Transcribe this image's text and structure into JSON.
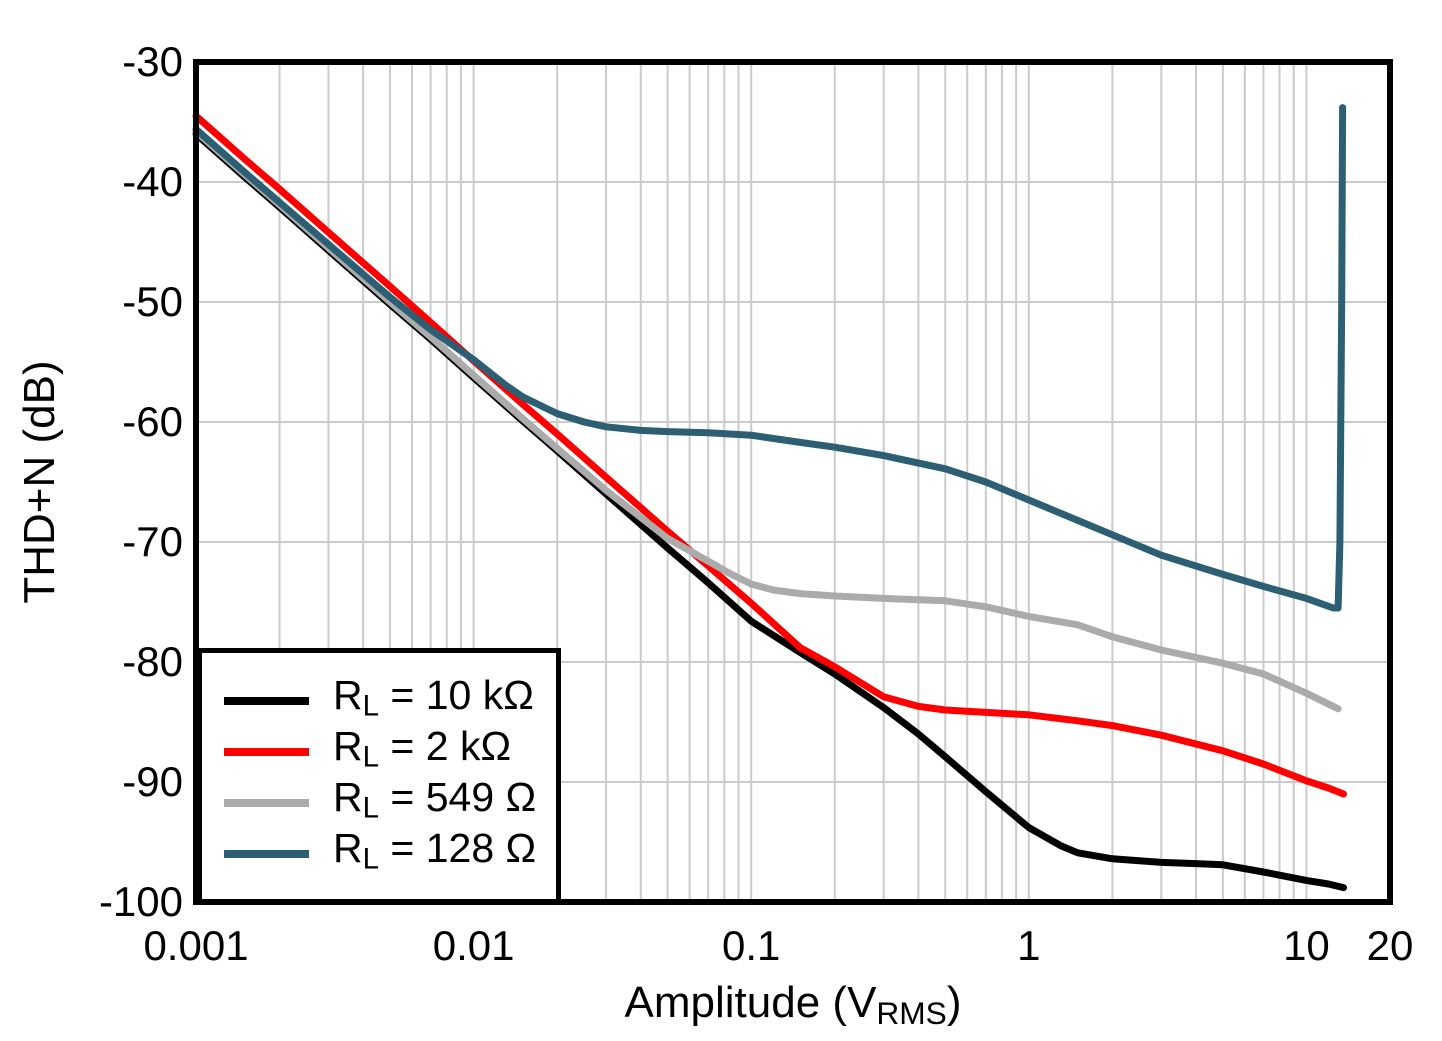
{
  "figure": {
    "background": "#FFFFFF",
    "grid_color": "#CBCBCB",
    "axis_color": "#000000"
  },
  "axes": {
    "x": {
      "scale": "log",
      "min": 0.001,
      "max": 20,
      "label_pre": "Amplitude (V",
      "label_sub": "RMS",
      "label_post": ")",
      "ticks": [
        {
          "value": 0.001,
          "label": "0.001"
        },
        {
          "value": 0.01,
          "label": "0.01"
        },
        {
          "value": 0.1,
          "label": "0.1"
        },
        {
          "value": 1,
          "label": "1"
        },
        {
          "value": 10,
          "label": "10"
        },
        {
          "value": 20,
          "label": "20"
        }
      ]
    },
    "y": {
      "scale": "linear",
      "min": -100,
      "max": -30,
      "label": "THD+N (dB)",
      "ticks": [
        {
          "value": -30,
          "label": "-30"
        },
        {
          "value": -40,
          "label": "-40"
        },
        {
          "value": -50,
          "label": "-50"
        },
        {
          "value": -60,
          "label": "-60"
        },
        {
          "value": -70,
          "label": "-70"
        },
        {
          "value": -80,
          "label": "-80"
        },
        {
          "value": -90,
          "label": "-90"
        },
        {
          "value": -100,
          "label": "-100"
        }
      ]
    }
  },
  "legend": {
    "position": "lower-left",
    "items": [
      {
        "pre": "R",
        "sub": "L",
        "post": " = 10 kΩ",
        "color": "#000000"
      },
      {
        "pre": "R",
        "sub": "L",
        "post": " = 2 kΩ",
        "color": "#FF0000"
      },
      {
        "pre": "R",
        "sub": "L",
        "post": " = 549 Ω",
        "color": "#ABABAB"
      },
      {
        "pre": "R",
        "sub": "L",
        "post": " = 128 Ω",
        "color": "#2C5F73"
      }
    ]
  },
  "chart_data": {
    "type": "line",
    "title": "",
    "xlabel": "Amplitude (VRMS)",
    "ylabel": "THD+N (dB)",
    "x_scale": "log",
    "xlim": [
      0.001,
      20
    ],
    "ylim": [
      -100,
      -30
    ],
    "grid": true,
    "legend_position": "lower-left",
    "series": [
      {
        "name": "RL = 10 kOhm",
        "color": "#000000",
        "points": [
          [
            0.001,
            -36.0
          ],
          [
            0.0015,
            -39.6
          ],
          [
            0.002,
            -42.1
          ],
          [
            0.003,
            -45.7
          ],
          [
            0.005,
            -50.2
          ],
          [
            0.007,
            -53.1
          ],
          [
            0.01,
            -56.3
          ],
          [
            0.015,
            -59.9
          ],
          [
            0.02,
            -62.4
          ],
          [
            0.03,
            -66.0
          ],
          [
            0.05,
            -70.5
          ],
          [
            0.07,
            -73.4
          ],
          [
            0.1,
            -76.6
          ],
          [
            0.15,
            -79.2
          ],
          [
            0.2,
            -81.0
          ],
          [
            0.3,
            -83.8
          ],
          [
            0.4,
            -86.0
          ],
          [
            0.5,
            -87.9
          ],
          [
            0.7,
            -90.8
          ],
          [
            1.0,
            -93.8
          ],
          [
            1.3,
            -95.3
          ],
          [
            1.5,
            -95.9
          ],
          [
            2,
            -96.4
          ],
          [
            3,
            -96.7
          ],
          [
            4,
            -96.8
          ],
          [
            5,
            -96.9
          ],
          [
            7,
            -97.5
          ],
          [
            10,
            -98.2
          ],
          [
            12,
            -98.5
          ],
          [
            13.6,
            -98.8
          ]
        ]
      },
      {
        "name": "RL = 2 kOhm",
        "color": "#FF0000",
        "points": [
          [
            0.001,
            -34.5
          ],
          [
            0.0015,
            -38.1
          ],
          [
            0.002,
            -40.6
          ],
          [
            0.003,
            -44.2
          ],
          [
            0.005,
            -48.7
          ],
          [
            0.007,
            -51.7
          ],
          [
            0.01,
            -54.9
          ],
          [
            0.015,
            -58.5
          ],
          [
            0.02,
            -61.0
          ],
          [
            0.03,
            -64.6
          ],
          [
            0.05,
            -69.1
          ],
          [
            0.07,
            -72.0
          ],
          [
            0.1,
            -75.1
          ],
          [
            0.15,
            -78.8
          ],
          [
            0.2,
            -80.4
          ],
          [
            0.3,
            -82.9
          ],
          [
            0.4,
            -83.7
          ],
          [
            0.5,
            -84.0
          ],
          [
            0.7,
            -84.2
          ],
          [
            1.0,
            -84.4
          ],
          [
            1.5,
            -84.9
          ],
          [
            2,
            -85.3
          ],
          [
            3,
            -86.1
          ],
          [
            5,
            -87.4
          ],
          [
            7,
            -88.5
          ],
          [
            10,
            -89.9
          ],
          [
            12,
            -90.5
          ],
          [
            13.6,
            -91.0
          ]
        ]
      },
      {
        "name": "RL = 549 Ohm",
        "color": "#ABABAB",
        "points": [
          [
            0.001,
            -35.8
          ],
          [
            0.0015,
            -39.4
          ],
          [
            0.002,
            -41.9
          ],
          [
            0.003,
            -45.5
          ],
          [
            0.005,
            -50.0
          ],
          [
            0.007,
            -52.9
          ],
          [
            0.01,
            -56.1
          ],
          [
            0.015,
            -59.7
          ],
          [
            0.02,
            -62.2
          ],
          [
            0.03,
            -65.7
          ],
          [
            0.05,
            -69.7
          ],
          [
            0.07,
            -71.6
          ],
          [
            0.085,
            -72.7
          ],
          [
            0.1,
            -73.5
          ],
          [
            0.12,
            -74.0
          ],
          [
            0.15,
            -74.3
          ],
          [
            0.2,
            -74.5
          ],
          [
            0.3,
            -74.7
          ],
          [
            0.5,
            -74.9
          ],
          [
            0.7,
            -75.4
          ],
          [
            1.0,
            -76.2
          ],
          [
            1.5,
            -76.9
          ],
          [
            2,
            -77.9
          ],
          [
            3,
            -79.0
          ],
          [
            5,
            -80.1
          ],
          [
            7,
            -81.0
          ],
          [
            10,
            -82.6
          ],
          [
            13,
            -83.9
          ]
        ]
      },
      {
        "name": "RL = 128 Ohm",
        "color": "#2C5F73",
        "points": [
          [
            0.001,
            -35.6
          ],
          [
            0.0015,
            -39.2
          ],
          [
            0.002,
            -41.7
          ],
          [
            0.003,
            -45.2
          ],
          [
            0.005,
            -49.6
          ],
          [
            0.007,
            -52.3
          ],
          [
            0.01,
            -54.8
          ],
          [
            0.013,
            -56.9
          ],
          [
            0.015,
            -57.9
          ],
          [
            0.02,
            -59.3
          ],
          [
            0.025,
            -60.0
          ],
          [
            0.03,
            -60.4
          ],
          [
            0.04,
            -60.7
          ],
          [
            0.05,
            -60.8
          ],
          [
            0.07,
            -60.9
          ],
          [
            0.1,
            -61.1
          ],
          [
            0.15,
            -61.7
          ],
          [
            0.2,
            -62.1
          ],
          [
            0.3,
            -62.8
          ],
          [
            0.5,
            -63.9
          ],
          [
            0.7,
            -65.0
          ],
          [
            1.0,
            -66.5
          ],
          [
            1.5,
            -68.2
          ],
          [
            2,
            -69.4
          ],
          [
            3,
            -71.1
          ],
          [
            5,
            -72.7
          ],
          [
            7,
            -73.7
          ],
          [
            10,
            -74.7
          ],
          [
            11.5,
            -75.2
          ],
          [
            12.5,
            -75.5
          ],
          [
            13,
            -75.5
          ],
          [
            13.2,
            -70.0
          ],
          [
            13.4,
            -50.0
          ],
          [
            13.5,
            -33.8
          ]
        ]
      }
    ]
  }
}
